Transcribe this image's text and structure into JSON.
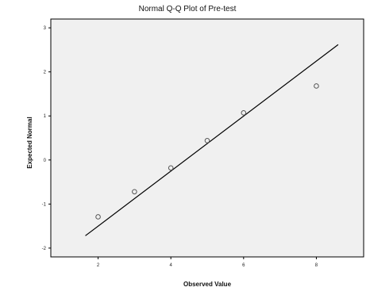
{
  "chart_data": {
    "type": "scatter",
    "title": "Normal Q-Q Plot of Pre-test",
    "xlabel": "Observed Value",
    "ylabel": "Expected Normal",
    "xlim": [
      0.7,
      9.3
    ],
    "ylim": [
      -2.2,
      3.2
    ],
    "x_ticks": [
      2,
      4,
      6,
      8
    ],
    "x_tick_labels": [
      "2",
      "4",
      "6",
      "8"
    ],
    "y_ticks": [
      -2,
      -1,
      0,
      1,
      2,
      3
    ],
    "y_tick_labels": [
      "-2",
      "-1",
      "0",
      "1",
      "2",
      "3"
    ],
    "grid": false,
    "colors": {
      "plot_background": "#f0f0f0",
      "points": "#555555",
      "line": "#000000"
    },
    "series": [
      {
        "kind": "points",
        "x": [
          2,
          3,
          4,
          5,
          6,
          8
        ],
        "y": [
          -1.29,
          -0.72,
          -0.18,
          0.44,
          1.07,
          1.68
        ]
      },
      {
        "kind": "reference-line",
        "x": [
          1.65,
          8.6
        ],
        "y": [
          -1.72,
          2.62
        ]
      }
    ]
  }
}
